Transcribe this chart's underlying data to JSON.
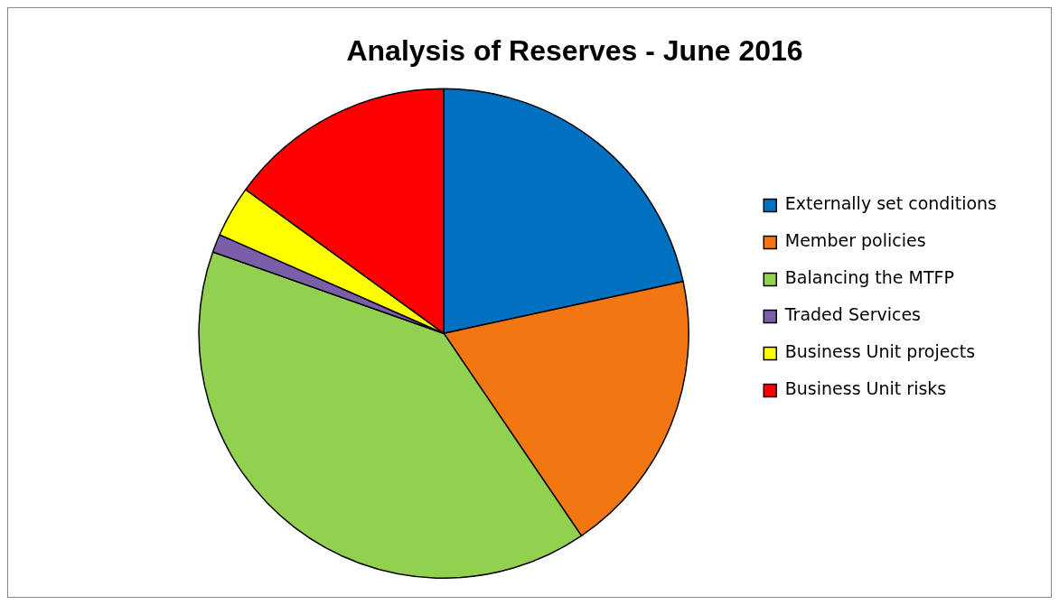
{
  "chart_data": {
    "type": "pie",
    "title": "Analysis of Reserves - June 2016",
    "categories": [
      "Externally set conditions",
      "Member policies",
      "Balancing the MTFP",
      "Traded Services",
      "Business Unit projects",
      "Business Unit risks"
    ],
    "values": [
      21.6,
      18.9,
      39.9,
      1.2,
      3.4,
      15.0
    ],
    "colors": [
      "#0070c0",
      "#f27612",
      "#92d050",
      "#7a5ea8",
      "#ffff00",
      "#ff0000"
    ],
    "legend": "right"
  }
}
